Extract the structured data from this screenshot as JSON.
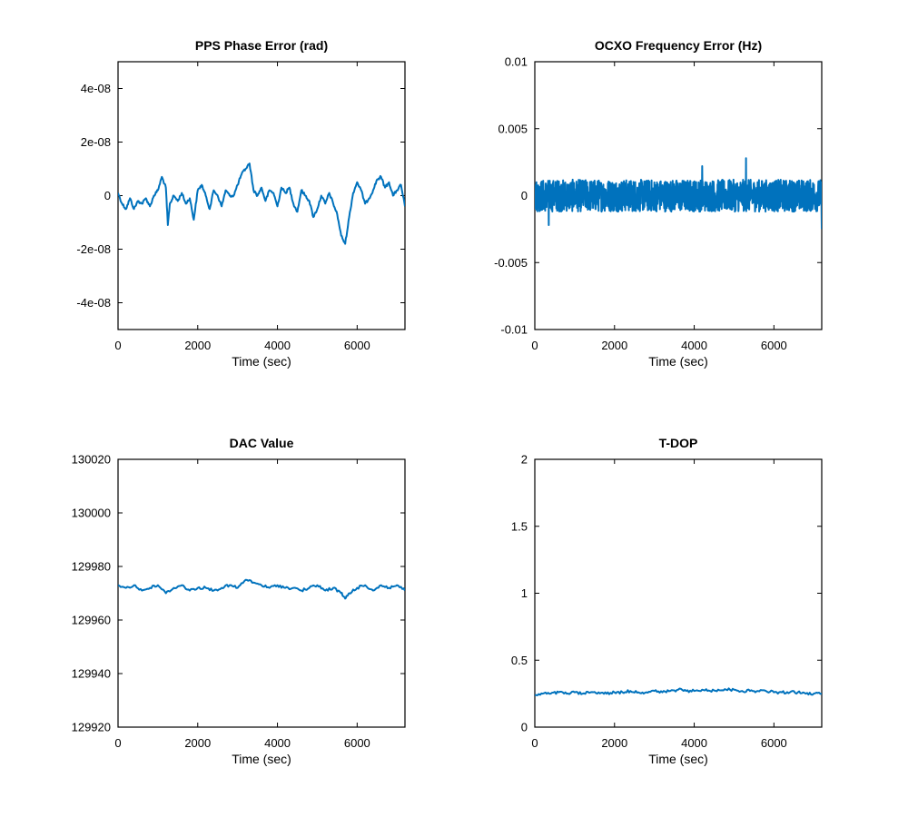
{
  "colors": {
    "series": "#0072bd",
    "axes": "#000000",
    "background": "#ffffff"
  },
  "chart_data": [
    {
      "type": "line",
      "title": "PPS Phase Error (rad)",
      "xlabel": "Time (sec)",
      "ylabel": "",
      "xlim": [
        0,
        7200
      ],
      "ylim": [
        -5e-08,
        5e-08
      ],
      "xticks": [
        0,
        2000,
        4000,
        6000
      ],
      "xtick_labels": [
        "0",
        "2000",
        "4000",
        "6000"
      ],
      "yticks": [
        -4e-08,
        -2e-08,
        0,
        2e-08,
        4e-08
      ],
      "ytick_labels": [
        "-4e-08",
        "-2e-08",
        "0",
        "2e-08",
        "4e-08"
      ],
      "grid": false,
      "series": [
        {
          "x": [
            0,
            100,
            200,
            300,
            400,
            500,
            600,
            700,
            800,
            900,
            1000,
            1100,
            1200,
            1250,
            1300,
            1400,
            1500,
            1600,
            1700,
            1800,
            1900,
            2000,
            2100,
            2200,
            2300,
            2400,
            2500,
            2600,
            2700,
            2800,
            2900,
            3000,
            3100,
            3200,
            3300,
            3400,
            3500,
            3600,
            3700,
            3800,
            3900,
            4000,
            4100,
            4200,
            4300,
            4400,
            4500,
            4600,
            4700,
            4800,
            4900,
            5000,
            5100,
            5200,
            5300,
            5400,
            5500,
            5600,
            5700,
            5800,
            5900,
            6000,
            6100,
            6200,
            6300,
            6400,
            6500,
            6600,
            6700,
            6800,
            6900,
            7000,
            7100,
            7200
          ],
          "y": [
            1e-09,
            -3e-09,
            -5e-09,
            -1e-09,
            -5e-09,
            -2e-09,
            -3e-09,
            -1e-09,
            -4e-09,
            0,
            2e-09,
            7e-09,
            3e-09,
            -1.1e-08,
            -3e-09,
            0,
            -2e-09,
            1e-09,
            -3e-09,
            -1e-09,
            -9e-09,
            2e-09,
            4e-09,
            0,
            -5e-09,
            2e-09,
            0,
            -4e-09,
            2e-09,
            0,
            0,
            4e-09,
            8e-09,
            1e-08,
            1.2e-08,
            2e-09,
            0,
            3e-09,
            -2e-09,
            2e-09,
            1e-09,
            -4e-09,
            3e-09,
            1e-09,
            3e-09,
            -3e-09,
            -6e-09,
            2e-09,
            0,
            -2e-09,
            -8e-09,
            -5e-09,
            0,
            -3e-09,
            1e-09,
            -3e-09,
            -7e-09,
            -1.5e-08,
            -1.8e-08,
            -8e-09,
            1e-09,
            5e-09,
            2e-09,
            -3e-09,
            -1e-09,
            2e-09,
            6e-09,
            7e-09,
            3e-09,
            5e-09,
            0,
            2e-09,
            4e-09,
            -4e-09
          ]
        }
      ]
    },
    {
      "type": "line",
      "title": "OCXO Frequency Error (Hz)",
      "xlabel": "Time (sec)",
      "ylabel": "",
      "xlim": [
        0,
        7200
      ],
      "ylim": [
        -0.01,
        0.01
      ],
      "xticks": [
        0,
        2000,
        4000,
        6000
      ],
      "xtick_labels": [
        "0",
        "2000",
        "4000",
        "6000"
      ],
      "yticks": [
        -0.01,
        -0.005,
        0,
        0.005,
        0.01
      ],
      "ytick_labels": [
        "-0.01",
        "-0.005",
        "0",
        "0.005",
        "0.01"
      ],
      "grid": false,
      "noise": {
        "n": 1440,
        "mean": 0,
        "amplitude": 0.0012,
        "spikes": [
          [
            5300,
            0.0028
          ],
          [
            7200,
            -0.0025
          ],
          [
            350,
            -0.0022
          ],
          [
            4200,
            0.0022
          ]
        ]
      }
    },
    {
      "type": "line",
      "title": "DAC Value",
      "xlabel": "Time (sec)",
      "ylabel": "",
      "xlim": [
        0,
        7200
      ],
      "ylim": [
        129920,
        130020
      ],
      "xticks": [
        0,
        2000,
        4000,
        6000
      ],
      "xtick_labels": [
        "0",
        "2000",
        "4000",
        "6000"
      ],
      "yticks": [
        129920,
        129940,
        129960,
        129980,
        130000,
        130020
      ],
      "ytick_labels": [
        "129920",
        "129940",
        "129960",
        "129980",
        "130000",
        "130020"
      ],
      "grid": false,
      "series": [
        {
          "x": [
            0,
            200,
            400,
            600,
            800,
            1000,
            1200,
            1400,
            1600,
            1800,
            2000,
            2200,
            2400,
            2600,
            2800,
            3000,
            3200,
            3400,
            3600,
            3800,
            4000,
            4200,
            4400,
            4600,
            4800,
            5000,
            5200,
            5400,
            5600,
            5700,
            5800,
            6000,
            6200,
            6400,
            6600,
            6800,
            7000,
            7200
          ],
          "y": [
            129973,
            129972,
            129973,
            129971,
            129972,
            129973,
            129970,
            129972,
            129973,
            129971,
            129972,
            129972,
            129971,
            129972,
            129973,
            129972,
            129975,
            129974,
            129973,
            129972,
            129973,
            129972,
            129972,
            129971,
            129972,
            129973,
            129971,
            129972,
            129970,
            129968,
            129970,
            129972,
            129973,
            129971,
            129973,
            129972,
            129973,
            129971
          ]
        }
      ]
    },
    {
      "type": "line",
      "title": "T-DOP",
      "xlabel": "Time (sec)",
      "ylabel": "",
      "xlim": [
        0,
        7200
      ],
      "ylim": [
        0,
        2
      ],
      "xticks": [
        0,
        2000,
        4000,
        6000
      ],
      "xtick_labels": [
        "0",
        "2000",
        "4000",
        "6000"
      ],
      "yticks": [
        0,
        0.5,
        1,
        1.5,
        2
      ],
      "ytick_labels": [
        "0",
        "0.5",
        "1",
        "1.5",
        "2"
      ],
      "grid": false,
      "series": [
        {
          "x": [
            0,
            200,
            400,
            600,
            800,
            1000,
            1200,
            1400,
            1600,
            1800,
            2000,
            2200,
            2400,
            2600,
            2800,
            3000,
            3200,
            3400,
            3600,
            3800,
            4000,
            4200,
            4400,
            4600,
            4800,
            5000,
            5200,
            5400,
            5600,
            5800,
            6000,
            6200,
            6400,
            6600,
            6800,
            7000,
            7200
          ],
          "y": [
            0.24,
            0.25,
            0.25,
            0.26,
            0.25,
            0.26,
            0.25,
            0.26,
            0.26,
            0.25,
            0.26,
            0.26,
            0.27,
            0.26,
            0.26,
            0.27,
            0.26,
            0.27,
            0.28,
            0.27,
            0.27,
            0.28,
            0.27,
            0.28,
            0.28,
            0.28,
            0.27,
            0.27,
            0.27,
            0.27,
            0.26,
            0.26,
            0.26,
            0.26,
            0.25,
            0.25,
            0.25
          ]
        }
      ]
    }
  ]
}
